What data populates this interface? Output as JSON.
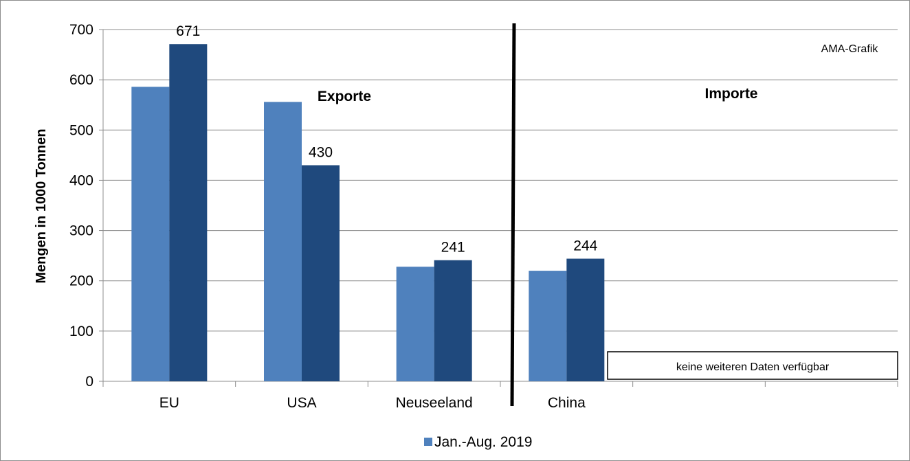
{
  "chart_data": {
    "type": "bar",
    "ylabel": "Mengen in 1000 Tonnen",
    "ylim": [
      0,
      700
    ],
    "yticks": [
      "0",
      "100",
      "200",
      "300",
      "400",
      "500",
      "600",
      "700"
    ],
    "grid": true,
    "categories": [
      "EU",
      "USA",
      "Neuseeland",
      "China"
    ],
    "series": [
      {
        "name": "Jan.-Aug. 2019",
        "color": "#4f81bd",
        "values": [
          586,
          556,
          228,
          220
        ]
      },
      {
        "color": "#1f497d",
        "values": [
          671,
          430,
          241,
          244
        ]
      }
    ],
    "data_labels": [
      "671",
      "430",
      "241",
      "244"
    ],
    "annotations": {
      "exports": "Exporte",
      "imports": "Importe",
      "source": "AMA-Grafik",
      "no_data": "keine weiteren Daten verfügbar"
    },
    "legend": {
      "position": "bottom",
      "label": "Jan.-Aug. 2019"
    }
  }
}
